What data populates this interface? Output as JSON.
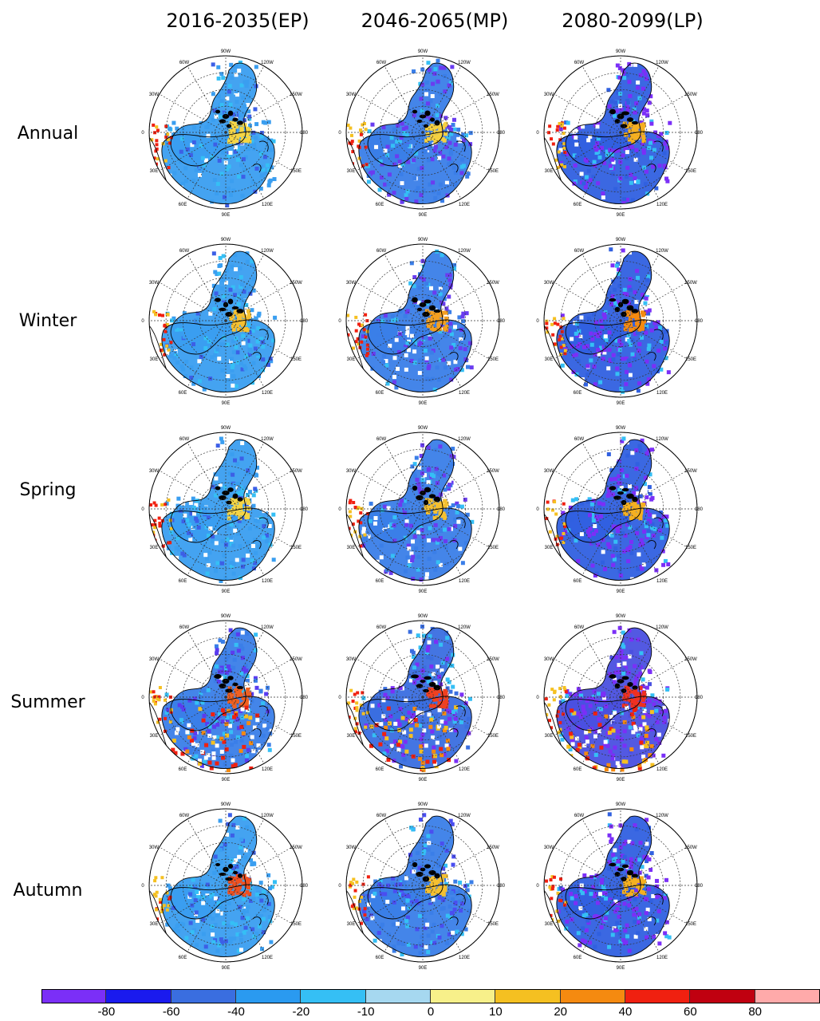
{
  "columns": [
    "2016-2035(EP)",
    "2046-2065(MP)",
    "2080-2099(LP)"
  ],
  "rows": [
    "Annual",
    "Winter",
    "Spring",
    "Summer",
    "Autumn"
  ],
  "map_labels": {
    "top": "90W",
    "bottom": "90E",
    "left": "0",
    "right": "180",
    "ul1": "60W",
    "ul2": "30W",
    "ur1": "120W",
    "ur2": "150W",
    "ll1": "30E",
    "ll2": "60E",
    "lr1": "150E",
    "lr2": "120E"
  },
  "colorbar": {
    "colors": [
      "#7b2ff7",
      "#1a1aee",
      "#3a6ee0",
      "#2a9af0",
      "#35bff5",
      "#a6d8f0",
      "#f7f08a",
      "#f5c021",
      "#f58a10",
      "#f02010",
      "#c00010",
      "#ffaaaa"
    ],
    "ticks": [
      "-80",
      "-60",
      "-40",
      "-20",
      "-10",
      "0",
      "10",
      "20",
      "40",
      "60",
      "80"
    ]
  },
  "panels": [
    {
      "row": "Annual",
      "col": "2016-2035(EP)",
      "main": "#3a9ef0",
      "dark": "#3c5fe6",
      "warm": "#f5d545",
      "intensity": 0.25
    },
    {
      "row": "Annual",
      "col": "2046-2065(MP)",
      "main": "#3a7ee8",
      "dark": "#6a3cf0",
      "warm": "#f5d040",
      "intensity": 0.5
    },
    {
      "row": "Annual",
      "col": "2080-2099(LP)",
      "main": "#3060e0",
      "dark": "#7b2ff7",
      "warm": "#f5b020",
      "intensity": 0.8
    },
    {
      "row": "Winter",
      "col": "2016-2035(EP)",
      "main": "#3a9ef0",
      "dark": "#3c5fe6",
      "warm": "#f5c030",
      "intensity": 0.3
    },
    {
      "row": "Winter",
      "col": "2046-2065(MP)",
      "main": "#3a7ee8",
      "dark": "#6a3cf0",
      "warm": "#f5a020",
      "intensity": 0.55
    },
    {
      "row": "Winter",
      "col": "2080-2099(LP)",
      "main": "#3060e0",
      "dark": "#7b2ff7",
      "warm": "#f58a10",
      "intensity": 0.8
    },
    {
      "row": "Spring",
      "col": "2016-2035(EP)",
      "main": "#3a9ef0",
      "dark": "#3c5fe6",
      "warm": "#f5d545",
      "intensity": 0.3
    },
    {
      "row": "Spring",
      "col": "2046-2065(MP)",
      "main": "#3a7ee8",
      "dark": "#6a3cf0",
      "warm": "#f5c030",
      "intensity": 0.55
    },
    {
      "row": "Spring",
      "col": "2080-2099(LP)",
      "main": "#3060e0",
      "dark": "#7b2ff7",
      "warm": "#f5b020",
      "intensity": 0.85
    },
    {
      "row": "Summer",
      "col": "2016-2035(EP)",
      "main": "#3a7ee8",
      "dark": "#5a3cf0",
      "warm": "#f06020",
      "intensity": 0.5
    },
    {
      "row": "Summer",
      "col": "2046-2065(MP)",
      "main": "#3a6ee0",
      "dark": "#7b2ff7",
      "warm": "#f04020",
      "intensity": 0.7
    },
    {
      "row": "Summer",
      "col": "2080-2099(LP)",
      "main": "#4a50e0",
      "dark": "#7b2ff7",
      "warm": "#f03020",
      "intensity": 0.85
    },
    {
      "row": "Autumn",
      "col": "2016-2035(EP)",
      "main": "#3a9ef0",
      "dark": "#3c5fe6",
      "warm": "#f05020",
      "intensity": 0.3
    },
    {
      "row": "Autumn",
      "col": "2046-2065(MP)",
      "main": "#3a7ee8",
      "dark": "#4a4ef0",
      "warm": "#f5c030",
      "intensity": 0.55
    },
    {
      "row": "Autumn",
      "col": "2080-2099(LP)",
      "main": "#3060e0",
      "dark": "#7b2ff7",
      "warm": "#f5b020",
      "intensity": 0.85
    }
  ]
}
